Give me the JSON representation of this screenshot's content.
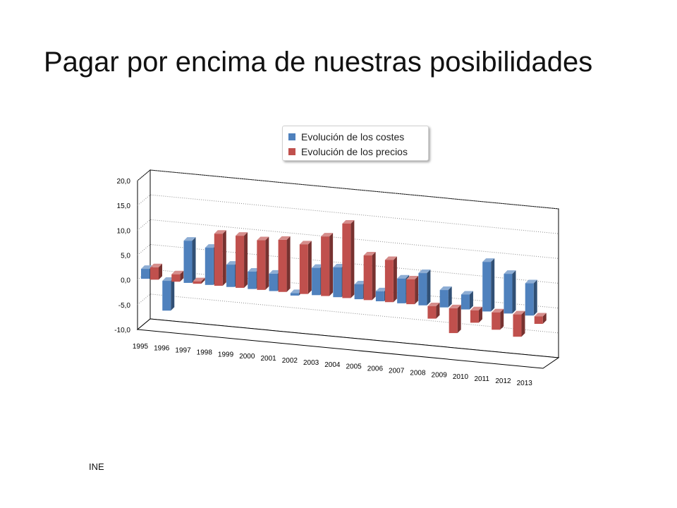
{
  "slide": {
    "title": "Pagar por encima de nuestras posibilidades",
    "footnote": "INE"
  },
  "chart_data": {
    "type": "bar",
    "style": "3d-clustered-column",
    "title": "",
    "xlabel": "",
    "ylabel": "",
    "ylim": [
      -10,
      20
    ],
    "yticks": [
      "-10,0",
      "-5,0",
      "0,0",
      "5,0",
      "10,0",
      "15,0",
      "20,0"
    ],
    "grid": true,
    "legend_position": "top",
    "categories": [
      "1995",
      "1996",
      "1997",
      "1998",
      "1999",
      "2000",
      "2001",
      "2002",
      "2003",
      "2004",
      "2005",
      "2006",
      "2007",
      "2008",
      "2009",
      "2010",
      "2011",
      "2012",
      "2013"
    ],
    "series": [
      {
        "name": "Evolución de los costes",
        "color": "#4f81bd",
        "values": [
          2.0,
          -6.0,
          8.5,
          7.5,
          4.5,
          3.5,
          3.5,
          -0.5,
          5.5,
          6.0,
          3.0,
          2.0,
          5.0,
          6.5,
          3.5,
          3.0,
          10.0,
          8.0,
          6.5
        ]
      },
      {
        "name": "Evolución de los precios",
        "color": "#c0504d",
        "values": [
          2.5,
          1.5,
          0.5,
          10.5,
          10.5,
          10.0,
          10.5,
          10.0,
          12.0,
          15.0,
          9.0,
          8.5,
          5.0,
          -2.5,
          -5.0,
          -2.5,
          -3.5,
          -4.5,
          -1.5
        ]
      }
    ]
  }
}
